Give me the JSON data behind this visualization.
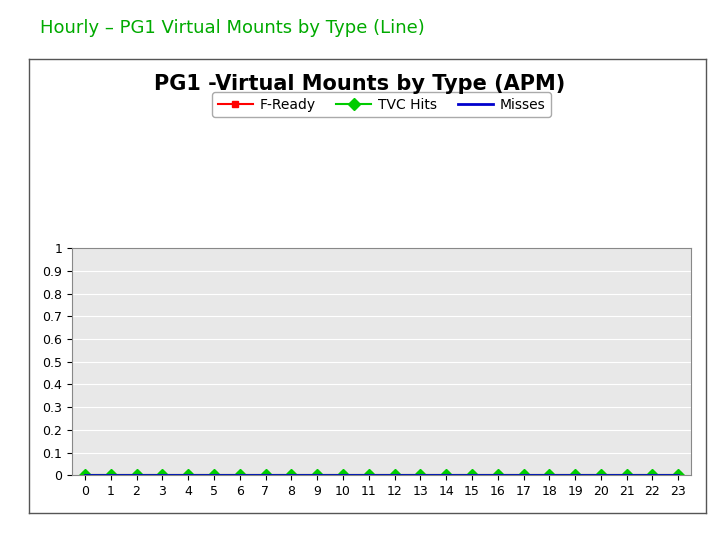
{
  "title": "PG1 -Virtual Mounts by Type (APM)",
  "suptitle": "Hourly – PG1 Virtual Mounts by Type (Line)",
  "suptitle_color": "#00aa00",
  "x_values": [
    0,
    1,
    2,
    3,
    4,
    5,
    6,
    7,
    8,
    9,
    10,
    11,
    12,
    13,
    14,
    15,
    16,
    17,
    18,
    19,
    20,
    21,
    22,
    23
  ],
  "f_ready": [
    0,
    0,
    0,
    0,
    0,
    0,
    0,
    0,
    0,
    0,
    0,
    0,
    0,
    0,
    0,
    0,
    0,
    0,
    0,
    0,
    0,
    0,
    0,
    0
  ],
  "tvc_hits": [
    0,
    0,
    0,
    0,
    0,
    0,
    0,
    0,
    0,
    0,
    0,
    0,
    0,
    0,
    0,
    0,
    0,
    0,
    0,
    0,
    0,
    0,
    0,
    0
  ],
  "misses": [
    0,
    0,
    0,
    0,
    0,
    0,
    0,
    0,
    0,
    0,
    0,
    0,
    0,
    0,
    0,
    0,
    0,
    0,
    0,
    0,
    0,
    0,
    0,
    0
  ],
  "f_ready_color": "#ff0000",
  "tvc_hits_color": "#00cc00",
  "misses_color": "#0000cc",
  "f_ready_marker": "s",
  "tvc_hits_marker": "D",
  "misses_marker": "None",
  "ylim": [
    0,
    1
  ],
  "yticks": [
    0,
    0.1,
    0.2,
    0.3,
    0.4,
    0.5,
    0.6,
    0.7,
    0.8,
    0.9,
    1
  ],
  "ytick_labels": [
    "0",
    "0.1",
    "0.2",
    "0.3",
    "0.4",
    "0.5",
    "0.6",
    "0.7",
    "0.8",
    "0.9",
    "1"
  ],
  "xticks": [
    0,
    1,
    2,
    3,
    4,
    5,
    6,
    7,
    8,
    9,
    10,
    11,
    12,
    13,
    14,
    15,
    16,
    17,
    18,
    19,
    20,
    21,
    22,
    23
  ],
  "legend_labels": [
    "F-Ready",
    "TVC Hits",
    "Misses"
  ],
  "title_fontsize": 15,
  "suptitle_fontsize": 13,
  "axis_bg_color": "#e8e8e8",
  "outer_bg_color": "#ffffff",
  "chart_box_color": "#ffffff",
  "grid_color": "#ffffff",
  "legend_box_color": "#ffffff"
}
